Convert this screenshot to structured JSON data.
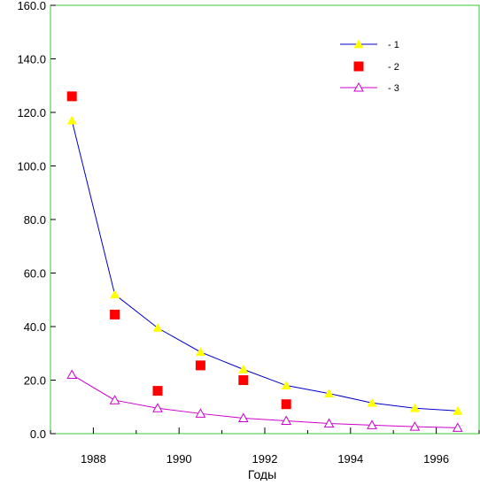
{
  "chart_data": {
    "type": "line",
    "title": "",
    "xlabel": "Годы",
    "ylabel": "",
    "xlim": [
      1987,
      1997
    ],
    "ylim": [
      0,
      160
    ],
    "x_ticks": [
      1988,
      1990,
      1992,
      1994,
      1996
    ],
    "y_ticks": [
      "0.0",
      "20.0",
      "40.0",
      "60.0",
      "80.0",
      "100.0",
      "120.0",
      "140.0",
      "160.0"
    ],
    "grid": false,
    "legend_position": "top-right",
    "series": [
      {
        "name": "- 1",
        "style": "line-with-filled-triangles",
        "line_color": "#0000cc",
        "marker_color": "#ffff00",
        "x": [
          1987.5,
          1988.5,
          1989.5,
          1990.5,
          1991.5,
          1992.5,
          1993.5,
          1994.5,
          1995.5,
          1996.5
        ],
        "values": [
          117,
          52,
          39.5,
          30.5,
          24,
          18,
          15,
          11.5,
          9.5,
          8.5
        ]
      },
      {
        "name": "- 2",
        "style": "filled-squares",
        "marker_color": "#ff0000",
        "x": [
          1987.5,
          1988.5,
          1989.5,
          1990.5,
          1991.5,
          1992.5
        ],
        "values": [
          126,
          44.5,
          16,
          25.5,
          20,
          11
        ]
      },
      {
        "name": "- 3",
        "style": "line-with-open-triangles",
        "line_color": "#cc00cc",
        "marker_color": "#cc00cc",
        "x": [
          1987.5,
          1988.5,
          1989.5,
          1990.5,
          1991.5,
          1992.5,
          1993.5,
          1994.5,
          1995.5,
          1996.5
        ],
        "values": [
          22,
          12.5,
          9.5,
          7.5,
          5.8,
          4.8,
          3.8,
          3.2,
          2.6,
          2.2
        ]
      }
    ],
    "frame_color": "#33cc33"
  }
}
